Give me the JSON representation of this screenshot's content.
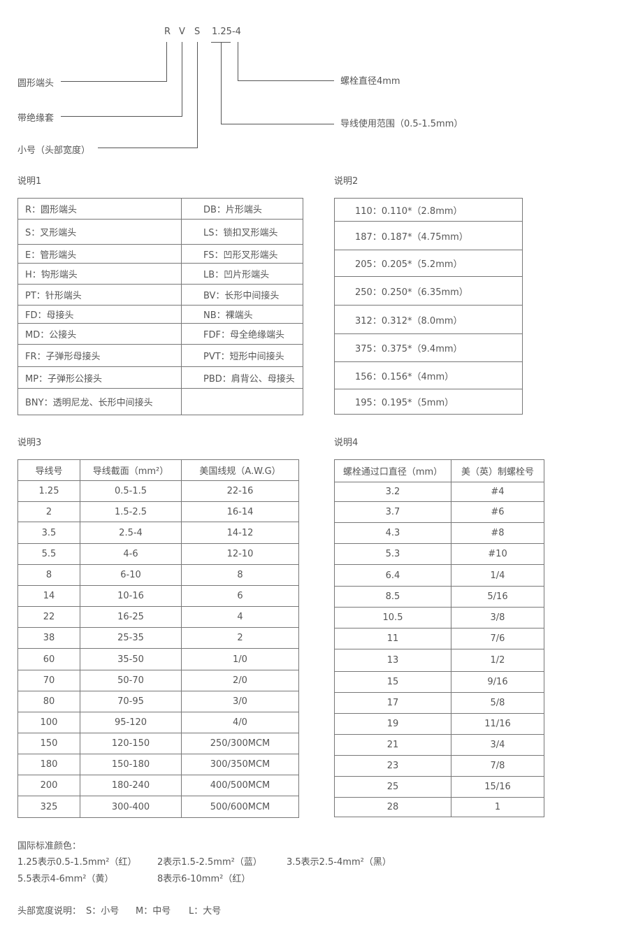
{
  "diagram": {
    "code_letters": [
      "R",
      "V",
      "S",
      "1.25-4"
    ],
    "left_labels": [
      "圆形端头",
      "带绝缘套",
      "小号（头部宽度）"
    ],
    "right_labels": [
      "螺栓直径4mm",
      "导线使用范围（0.5-1.5mm）"
    ]
  },
  "section1": {
    "title": "说明1",
    "rows": [
      [
        "R：圆形端头",
        "DB：片形端头"
      ],
      [
        "S：叉形端头",
        "LS：锁扣叉形端头"
      ],
      [
        "E：管形端头",
        "FS：凹形叉形端头"
      ],
      [
        "H：钩形端头",
        "LB：凹片形端头"
      ],
      [
        "PT：针形端头",
        "BV：长形中间接头"
      ],
      [
        "FD：母接头",
        "NB：裸端头"
      ],
      [
        "MD：公接头",
        "FDF：母全绝缘端头"
      ],
      [
        "FR：子弹形母接头",
        "PVT：短形中间接头"
      ],
      [
        "MP：子弹形公接头",
        "PBD：肩背公、母接头"
      ],
      [
        "BNY：透明尼龙、长形中间接头",
        ""
      ]
    ]
  },
  "section2": {
    "title": "说明2",
    "rows": [
      [
        "110：0.110*（2.8mm）"
      ],
      [
        "187：0.187*（4.75mm）"
      ],
      [
        "205：0.205*（5.2mm）"
      ],
      [
        "250：0.250*（6.35mm）"
      ],
      [
        "312：0.312*（8.0mm）"
      ],
      [
        "375：0.375*（9.4mm）"
      ],
      [
        "156：0.156*（4mm）"
      ],
      [
        "195：0.195*（5mm）"
      ]
    ]
  },
  "section3": {
    "title": "说明3",
    "headers": [
      "导线号",
      "导线截面（mm²）",
      "美国线规（A.W.G）"
    ],
    "rows": [
      [
        "1.25",
        "0.5-1.5",
        "22-16"
      ],
      [
        "2",
        "1.5-2.5",
        "16-14"
      ],
      [
        "3.5",
        "2.5-4",
        "14-12"
      ],
      [
        "5.5",
        "4-6",
        "12-10"
      ],
      [
        "8",
        "6-10",
        "8"
      ],
      [
        "14",
        "10-16",
        "6"
      ],
      [
        "22",
        "16-25",
        "4"
      ],
      [
        "38",
        "25-35",
        "2"
      ],
      [
        "60",
        "35-50",
        "1/0"
      ],
      [
        "70",
        "50-70",
        "2/0"
      ],
      [
        "80",
        "70-95",
        "3/0"
      ],
      [
        "100",
        "95-120",
        "4/0"
      ],
      [
        "150",
        "120-150",
        "250/300MCM"
      ],
      [
        "180",
        "150-180",
        "300/350MCM"
      ],
      [
        "200",
        "180-240",
        "400/500MCM"
      ],
      [
        "325",
        "300-400",
        "500/600MCM"
      ]
    ]
  },
  "section4": {
    "title": "说明4",
    "headers": [
      "螺栓通过口直径（mm）",
      "美（英）制螺栓号"
    ],
    "rows": [
      [
        "3.2",
        "#4"
      ],
      [
        "3.7",
        "#6"
      ],
      [
        "4.3",
        "#8"
      ],
      [
        "5.3",
        "#10"
      ],
      [
        "6.4",
        "1/4"
      ],
      [
        "8.5",
        "5/16"
      ],
      [
        "10.5",
        "3/8"
      ],
      [
        "11",
        "7/6"
      ],
      [
        "13",
        "1/2"
      ],
      [
        "15",
        "9/16"
      ],
      [
        "17",
        "5/8"
      ],
      [
        "19",
        "11/16"
      ],
      [
        "21",
        "3/4"
      ],
      [
        "23",
        "7/8"
      ],
      [
        "25",
        "15/16"
      ],
      [
        "28",
        "1"
      ]
    ]
  },
  "colors": {
    "title": "国际标准颜色：",
    "line1": [
      "1.25表示0.5-1.5mm²（红）",
      "2表示1.5-2.5mm²（蓝）",
      "3.5表示2.5-4mm²（黑）"
    ],
    "line2": [
      "5.5表示4-6mm²（黄）",
      "8表示6-10mm²（红）"
    ]
  },
  "head_width": {
    "label": "头部宽度说明：",
    "items": [
      "S：小号",
      "M：中号",
      "L：大号"
    ]
  }
}
